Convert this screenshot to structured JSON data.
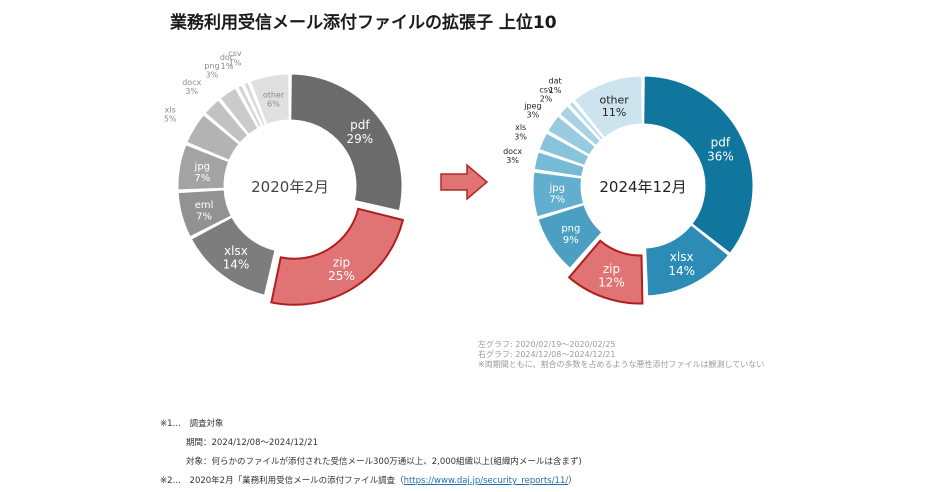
{
  "title": "業務利用受信メール添付ファイルの拡張子 上位10",
  "chart_data": [
    {
      "type": "pie",
      "center_label": "2020年2月",
      "slices": [
        {
          "label": "pdf",
          "value": 29,
          "text": "29%",
          "color": "#6b6b6b"
        },
        {
          "label": "zip",
          "value": 25,
          "text": "25%",
          "color": "#e07373",
          "highlight": true
        },
        {
          "label": "xlsx",
          "value": 14,
          "text": "14%",
          "color": "#7d7d7d"
        },
        {
          "label": "eml",
          "value": 7,
          "text": "7%",
          "color": "#929292"
        },
        {
          "label": "jpg",
          "value": 7,
          "text": "7%",
          "color": "#a3a3a3"
        },
        {
          "label": "xls",
          "value": 5,
          "text": "5%",
          "color": "#b3b3b3"
        },
        {
          "label": "docx",
          "value": 3,
          "text": "3%",
          "color": "#c2c2c2"
        },
        {
          "label": "png",
          "value": 3,
          "text": "3%",
          "color": "#cbcbcb"
        },
        {
          "label": "doc",
          "value": 1,
          "text": "1%",
          "color": "#d3d3d3"
        },
        {
          "label": "csv",
          "value": 1,
          "text": "1%",
          "color": "#d9d9d9"
        },
        {
          "label": "other",
          "value": 6,
          "text": "6%",
          "color": "#e0e0e0"
        }
      ]
    },
    {
      "type": "pie",
      "center_label": "2024年12月",
      "slices": [
        {
          "label": "pdf",
          "value": 36,
          "text": "36%",
          "color": "#11769e"
        },
        {
          "label": "xlsx",
          "value": 14,
          "text": "14%",
          "color": "#2c8cb5"
        },
        {
          "label": "zip",
          "value": 12,
          "text": "12%",
          "color": "#e07373",
          "highlight": true
        },
        {
          "label": "png",
          "value": 9,
          "text": "9%",
          "color": "#4b9fc3"
        },
        {
          "label": "jpg",
          "value": 7,
          "text": "7%",
          "color": "#62aece"
        },
        {
          "label": "docx",
          "value": 3,
          "text": "3%",
          "color": "#77bad6"
        },
        {
          "label": "xls",
          "value": 3,
          "text": "3%",
          "color": "#88c3dc"
        },
        {
          "label": "jpeg",
          "value": 3,
          "text": "3%",
          "color": "#98cbe0"
        },
        {
          "label": "csv",
          "value": 2,
          "text": "2%",
          "color": "#a8d3e5"
        },
        {
          "label": "dat",
          "value": 1,
          "text": "1%",
          "color": "#b8dbe9"
        },
        {
          "label": "other",
          "value": 11,
          "text": "11%",
          "color": "#cde4ee"
        }
      ]
    }
  ],
  "notes": [
    "左グラフ: 2020/02/19～2020/02/25",
    "右グラフ: 2024/12/08～2024/12/21",
    "※両期間ともに、割合の多数を占めるような悪性添付ファイルは観測していない"
  ],
  "footnotes": {
    "n1": "※1…　調査対象",
    "period": "期間：2024/12/08～2024/12/21",
    "target": "対象：何らかのファイルが添付された受信メール300万通以上、2,000組織以上(組織内メールは含まず)",
    "n2_prefix": "※2…　2020年2月「業務利用受信メールの添付ファイル調査（",
    "n2_link": "https://www.daj.jp/security_reports/11/",
    "n2_suffix": "）"
  }
}
